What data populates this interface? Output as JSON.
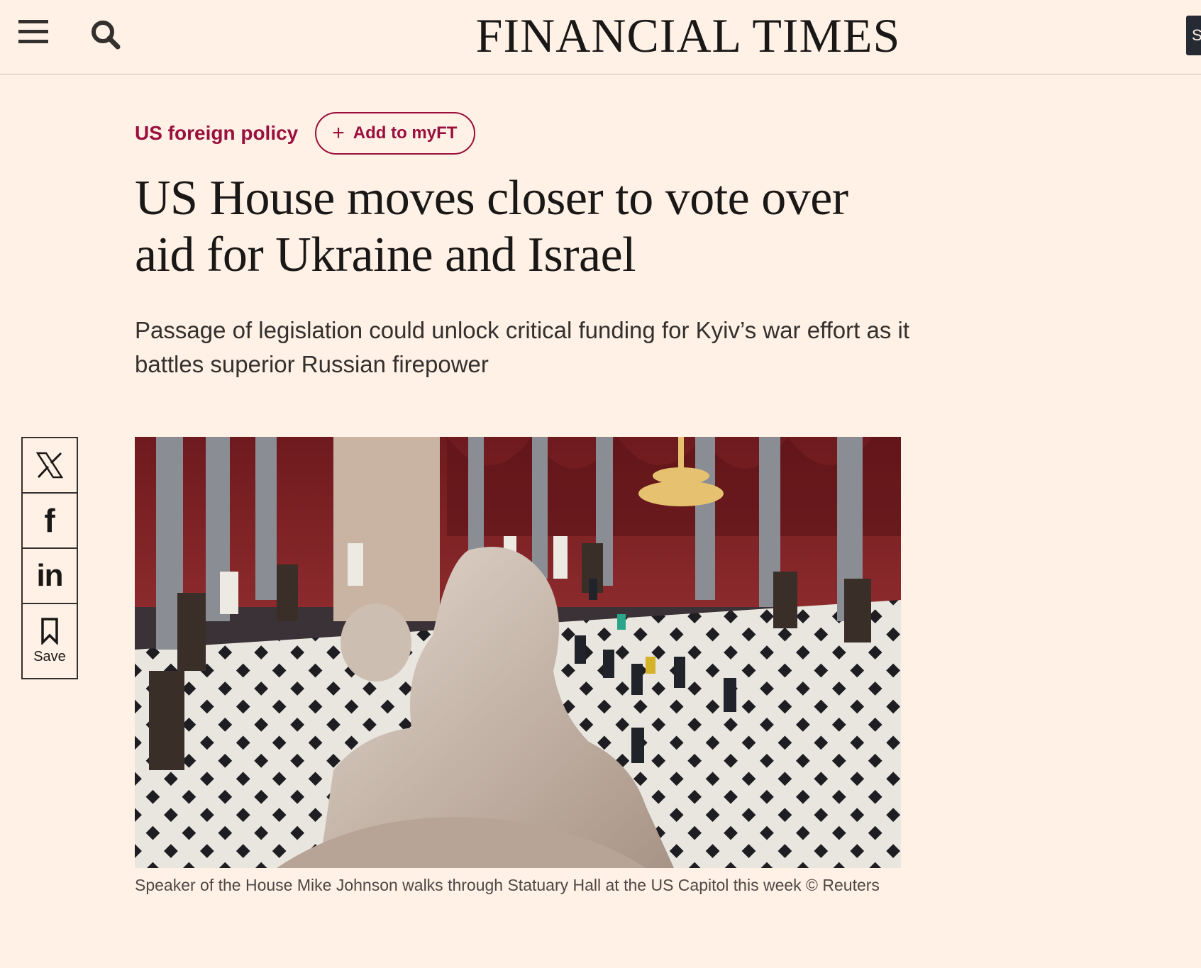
{
  "header": {
    "masthead": "FINANCIAL TIMES",
    "menu_icon": "hamburger-menu-icon",
    "search_icon": "search-icon",
    "subscribe_partial": "S"
  },
  "article": {
    "topic": "US foreign policy",
    "myft_label": "Add to myFT",
    "headline": "US House moves closer to vote over aid for Ukraine and Israel",
    "standfirst": "Passage of legislation could unlock critical funding for Kyiv’s war effort as it battles superior Russian firepower",
    "image_caption": "Speaker of the House Mike Johnson walks through Statuary Hall at the US Capitol this week © Reuters"
  },
  "share": {
    "twitter_icon": "x-twitter-icon",
    "facebook_glyph": "f",
    "linkedin_glyph": "in",
    "save_label": "Save"
  },
  "colors": {
    "background": "#FFF1E5",
    "accent": "#990F3D",
    "text": "#33302E",
    "masthead": "#1A1817"
  }
}
